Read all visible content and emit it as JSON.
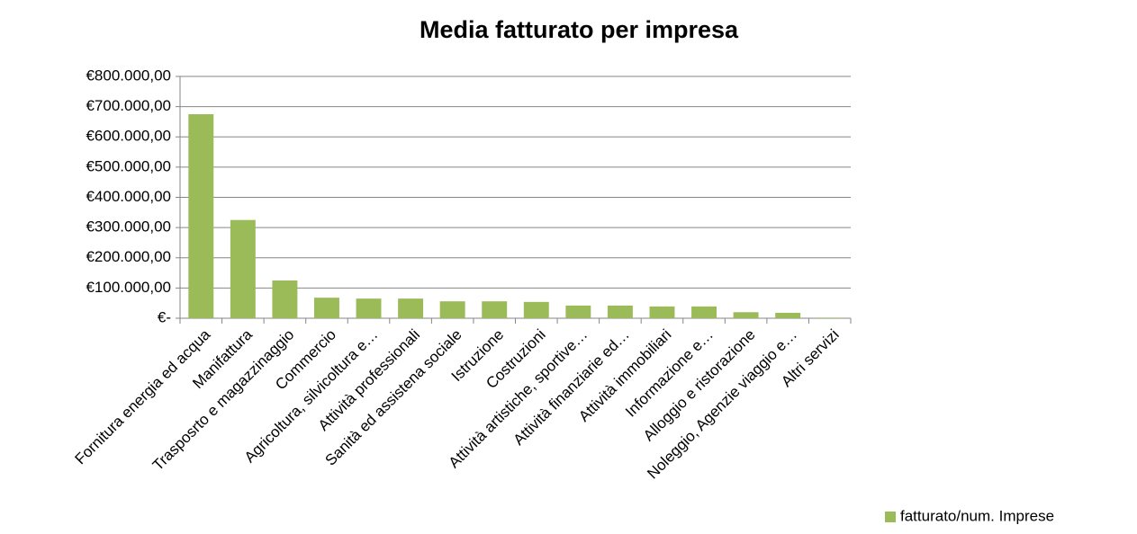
{
  "chart_data": {
    "type": "bar",
    "title": "Media fatturato per impresa",
    "categories": [
      "Fornitura energia ed acqua",
      "Manifattura",
      "Trasposrto e magazzinaggio",
      "Commercio",
      "Agricoltura, silvicoltura e…",
      "Attività professionali",
      "Sanità ed assistena sociale",
      "Istruzione",
      "Costruzioni",
      "Attività artistiche, sportive…",
      "Attività finanziarie ed…",
      "Attività immobiliari",
      "Informazione e…",
      "Alloggio e ristorazione",
      "Noleggio, Agenzie viaggio e…",
      "Altri servizi"
    ],
    "series": [
      {
        "name": "fatturato/num. Imprese",
        "color": "#9bbb59",
        "values": [
          675000,
          325000,
          125000,
          68000,
          65000,
          65000,
          56000,
          56000,
          54000,
          42000,
          42000,
          39000,
          39000,
          20000,
          18000,
          2000
        ]
      }
    ],
    "ylim": [
      0,
      800000
    ],
    "yticks": [
      {
        "value": 0,
        "label": "€-"
      },
      {
        "value": 100000,
        "label": "€100.000,00"
      },
      {
        "value": 200000,
        "label": "€200.000,00"
      },
      {
        "value": 300000,
        "label": "€300.000,00"
      },
      {
        "value": 400000,
        "label": "€400.000,00"
      },
      {
        "value": 500000,
        "label": "€500.000,00"
      },
      {
        "value": 600000,
        "label": "€600.000,00"
      },
      {
        "value": 700000,
        "label": "€700.000,00"
      },
      {
        "value": 800000,
        "label": "€800.000,00"
      }
    ],
    "grid": true,
    "legend": "bottom-right"
  }
}
